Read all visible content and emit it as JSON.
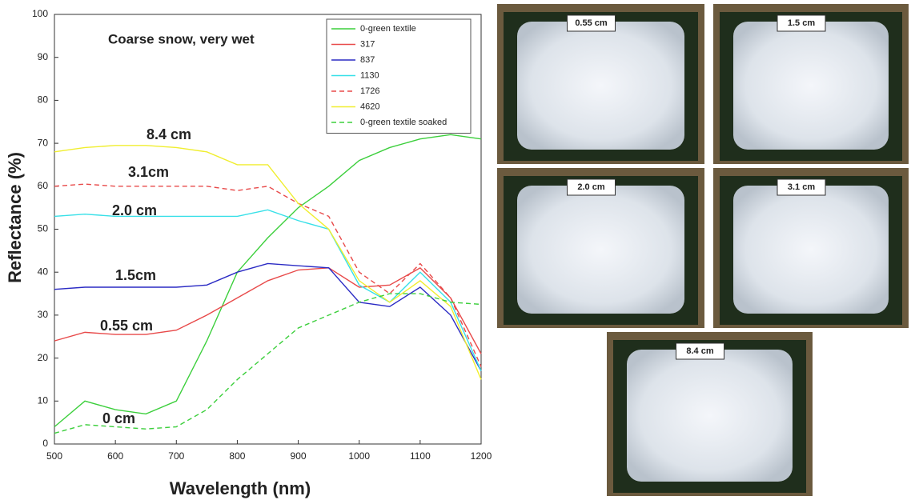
{
  "chart_data": {
    "type": "line",
    "x_label": "Wavelength (nm)",
    "y_label": "Reflectance (%)",
    "xlim": [
      500,
      1200
    ],
    "xticks": [
      500,
      600,
      700,
      800,
      900,
      1000,
      1100,
      1200
    ],
    "ylim": [
      0,
      100
    ],
    "yticks": [
      0,
      10,
      20,
      30,
      40,
      50,
      60,
      70,
      80,
      90,
      100
    ],
    "grid": false,
    "legend": "top-right",
    "annotations": [
      "Coarse snow, very wet",
      "8.4 cm",
      "3.1cm",
      "2.0 cm",
      "1.5cm",
      "0.55 cm",
      "0 cm"
    ],
    "x": [
      500,
      550,
      600,
      650,
      700,
      750,
      800,
      850,
      900,
      950,
      1000,
      1050,
      1100,
      1150,
      1200
    ],
    "series": [
      {
        "name": "0-green textile",
        "color": "#3ccf3c",
        "dashed": false,
        "values": [
          4,
          10,
          8,
          7,
          10,
          24,
          40,
          48,
          55,
          60,
          66,
          69,
          71,
          72,
          71
        ]
      },
      {
        "name": "317",
        "color": "#e84a4a",
        "dashed": false,
        "values": [
          24,
          26,
          25.5,
          25.5,
          26.5,
          30,
          34,
          38,
          40.5,
          41,
          36.5,
          37,
          41,
          34,
          21
        ]
      },
      {
        "name": "837",
        "color": "#2b2bc4",
        "dashed": false,
        "values": [
          36,
          36.5,
          36.5,
          36.5,
          36.5,
          37,
          40,
          42,
          41.5,
          41,
          33,
          32,
          36.5,
          30,
          17
        ]
      },
      {
        "name": "1130",
        "color": "#38e0e8",
        "dashed": false,
        "values": [
          53,
          53.5,
          53,
          53,
          53,
          53,
          53,
          54.5,
          52,
          50,
          37,
          33,
          40,
          33,
          17
        ]
      },
      {
        "name": "1726",
        "color": "#e84a4a",
        "dashed": true,
        "values": [
          60,
          60.5,
          60,
          60,
          60,
          60,
          59,
          60,
          56,
          53,
          40,
          35,
          42,
          34,
          18
        ]
      },
      {
        "name": "4620",
        "color": "#f0ee30",
        "dashed": false,
        "values": [
          68,
          69,
          69.5,
          69.5,
          69,
          68,
          65,
          65,
          56,
          50,
          38,
          33,
          38,
          32,
          15
        ]
      },
      {
        "name": "0-green textile soaked",
        "color": "#3ccf3c",
        "dashed": true,
        "values": [
          2.5,
          4.5,
          4,
          3.5,
          4,
          8,
          15,
          21,
          27,
          30,
          33,
          35,
          35,
          33,
          32.5
        ]
      }
    ]
  },
  "photos": [
    {
      "label": "0.55 cm"
    },
    {
      "label": "1.5 cm"
    },
    {
      "label": "2.0 cm"
    },
    {
      "label": "3.1 cm"
    },
    {
      "label": "8.4 cm"
    }
  ]
}
